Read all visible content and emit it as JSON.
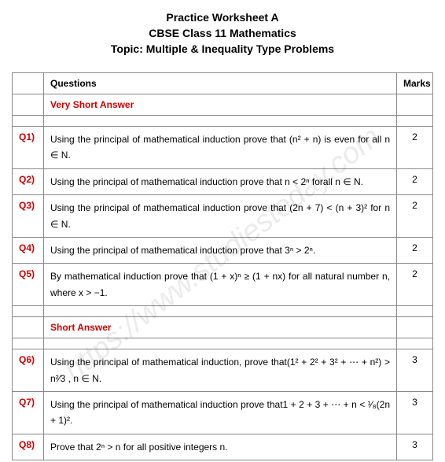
{
  "header": {
    "line1": "Practice Worksheet A",
    "line2": "CBSE Class 11 Mathematics",
    "line3": "Topic: Multiple & Inequality Type Problems"
  },
  "table": {
    "head_questions": "Questions",
    "head_marks": "Marks",
    "section_vsa": "Very Short Answer",
    "section_sa": "Short Answer",
    "rows": [
      {
        "q": "Q1)",
        "text": "Using the principal of mathematical induction prove that (n² + n) is even for all n ∈ N.",
        "marks": "2"
      },
      {
        "q": "Q2)",
        "text": "Using the principal of mathematical induction prove that n < 2ⁿ forall n ∈ N.",
        "marks": "2"
      },
      {
        "q": "Q3)",
        "text": "Using the principal of mathematical induction prove that (2n + 7) < (n + 3)² for n ∈ N.",
        "marks": "2"
      },
      {
        "q": "Q4)",
        "text": "Using the principal of mathematical induction prove that 3ⁿ > 2ⁿ.",
        "marks": "2"
      },
      {
        "q": "Q5)",
        "text": "By mathematical induction prove that (1 + x)ⁿ ≥ (1 + nx) for all natural number n, where x > −1.",
        "marks": "2"
      },
      {
        "q": "Q6)",
        "text": "Using the principal of mathematical induction, prove that(1² + 2² + 3² + ⋯ + n²) > n²⁄3 , n ∈ N.",
        "marks": "3"
      },
      {
        "q": "Q7)",
        "text": "Using the principal of mathematical induction prove that1 + 2 + 3 + ⋯ + n < ¹⁄₈(2n + 1)².",
        "marks": "3"
      },
      {
        "q": "Q8)",
        "text": "Prove that 2ⁿ > n for all positive integers n.",
        "marks": "3"
      }
    ]
  },
  "watermark": "https://www.studiestoday.com",
  "colors": {
    "red": "#d00000",
    "border": "#888888",
    "text": "#000000",
    "background": "#ffffff"
  }
}
